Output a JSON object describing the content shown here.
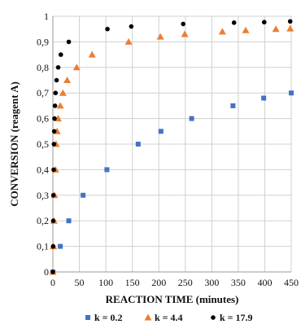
{
  "chart_data": {
    "type": "scatter",
    "title": "",
    "xlabel": "REACTION TIME (minutes)",
    "ylabel": "CONVERSION (reagent A)",
    "xlim": [
      0,
      450
    ],
    "ylim": [
      0,
      1
    ],
    "x_ticks": [
      0,
      50,
      100,
      150,
      200,
      250,
      300,
      350,
      400,
      450
    ],
    "y_ticks": [
      "0",
      "0,1",
      "0,2",
      "0,3",
      "0,4",
      "0,5",
      "0,6",
      "0,7",
      "0,8",
      "0,9",
      "1"
    ],
    "grid": "both",
    "legend_position": "bottom",
    "series": [
      {
        "name": "k = 0.2",
        "marker": "square",
        "color": "#4472C4",
        "points": [
          [
            0,
            0
          ],
          [
            14,
            0.1
          ],
          [
            30,
            0.2
          ],
          [
            57,
            0.3
          ],
          [
            102,
            0.4
          ],
          [
            161,
            0.5
          ],
          [
            204,
            0.55
          ],
          [
            262,
            0.6
          ],
          [
            340,
            0.65
          ],
          [
            398,
            0.68
          ],
          [
            450,
            0.7
          ]
        ]
      },
      {
        "name": "k = 4.4",
        "marker": "triangle",
        "color": "#ED7D31",
        "points": [
          [
            0,
            0
          ],
          [
            1,
            0.1
          ],
          [
            2,
            0.2
          ],
          [
            3,
            0.3
          ],
          [
            5,
            0.4
          ],
          [
            6,
            0.5
          ],
          [
            8,
            0.55
          ],
          [
            10,
            0.6
          ],
          [
            14,
            0.65
          ],
          [
            19,
            0.7
          ],
          [
            27,
            0.75
          ],
          [
            45,
            0.8
          ],
          [
            74,
            0.85
          ],
          [
            143,
            0.9
          ],
          [
            203,
            0.92
          ],
          [
            249,
            0.93
          ],
          [
            320,
            0.94
          ],
          [
            364,
            0.945
          ],
          [
            421,
            0.95
          ],
          [
            448,
            0.952
          ]
        ]
      },
      {
        "name": "k = 17.9",
        "marker": "circle",
        "color": "#000000",
        "points": [
          [
            0,
            0
          ],
          [
            0.5,
            0.1
          ],
          [
            0.7,
            0.2
          ],
          [
            1,
            0.3
          ],
          [
            1.5,
            0.4
          ],
          [
            2,
            0.5
          ],
          [
            2.5,
            0.55
          ],
          [
            3,
            0.6
          ],
          [
            4,
            0.65
          ],
          [
            5,
            0.7
          ],
          [
            7,
            0.75
          ],
          [
            10,
            0.8
          ],
          [
            15,
            0.85
          ],
          [
            30,
            0.9
          ],
          [
            103,
            0.95
          ],
          [
            148,
            0.96
          ],
          [
            246,
            0.97
          ],
          [
            342,
            0.975
          ],
          [
            399,
            0.977
          ],
          [
            448,
            0.98
          ]
        ]
      }
    ]
  }
}
